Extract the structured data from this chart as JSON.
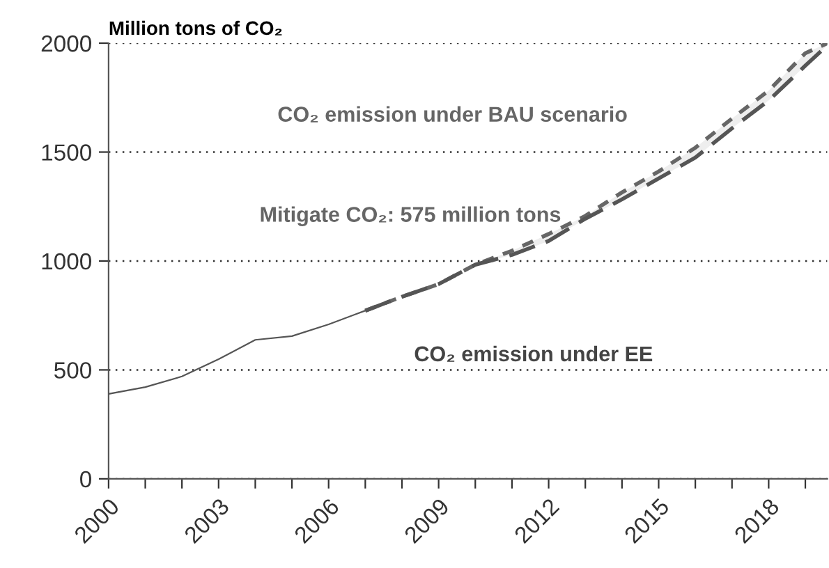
{
  "chart_data": {
    "type": "line",
    "ylabel": "Million tons of CO₂",
    "annotations": [
      "CO₂ emission under BAU scenario",
      "Mitigate CO₂: 575 million tons",
      "CO₂ emission under EE"
    ],
    "series": [
      {
        "color": "#555555",
        "line_style": "solid",
        "x": [
          2000,
          2001,
          2002,
          2003,
          2004,
          2005,
          2006,
          2007
        ],
        "values": [
          390,
          421,
          470,
          549,
          638,
          655,
          709,
          772
        ]
      },
      {
        "color": "#666666",
        "line_style": "dotted",
        "x": [
          2007,
          2008,
          2009,
          2010,
          2011,
          2012,
          2013,
          2014,
          2015,
          2016,
          2017,
          2018,
          2019,
          2019.6
        ],
        "values": [
          772,
          836,
          894,
          983,
          1047,
          1124,
          1207,
          1315,
          1411,
          1520,
          1654,
          1782,
          1954,
          2000
        ],
        "lower": [
          772,
          836,
          894,
          983,
          1028,
          1092,
          1194,
          1283,
          1379,
          1475,
          1609,
          1737,
          1897,
          1990
        ],
        "upper": [
          772,
          836,
          894,
          983,
          1047,
          1124,
          1207,
          1315,
          1411,
          1520,
          1654,
          1782,
          1954,
          2000
        ]
      },
      {
        "color": "#555555",
        "line_style": "dashed",
        "x": [
          2007,
          2008,
          2009,
          2010,
          2011,
          2012,
          2013,
          2014,
          2015,
          2016,
          2017,
          2018,
          2019,
          2019.6
        ],
        "values": [
          772,
          836,
          894,
          983,
          1028,
          1092,
          1194,
          1283,
          1379,
          1475,
          1609,
          1737,
          1897,
          1990
        ]
      }
    ],
    "xlim": [
      2000,
      2019.6
    ],
    "xticks": [
      2000,
      {
        "value": 2001,
        "label": null
      },
      {
        "value": 2002,
        "label": null
      },
      2003,
      {
        "value": 2004,
        "label": null
      },
      {
        "value": 2005,
        "label": null
      },
      2006,
      {
        "value": 2007,
        "label": null
      },
      {
        "value": 2008,
        "label": null
      },
      2009,
      {
        "value": 2010,
        "label": null
      },
      {
        "value": 2011,
        "label": null
      },
      2012,
      {
        "value": 2013,
        "label": null
      },
      {
        "value": 2014,
        "label": null
      },
      2015,
      {
        "value": 2016,
        "label": null
      },
      {
        "value": 2017,
        "label": null
      },
      2018,
      {
        "value": 2019,
        "label": null
      }
    ],
    "ylim": [
      0,
      2000
    ],
    "yticks": [
      0,
      500,
      1000,
      1500,
      2000
    ],
    "grid": "y",
    "marker": "none"
  }
}
